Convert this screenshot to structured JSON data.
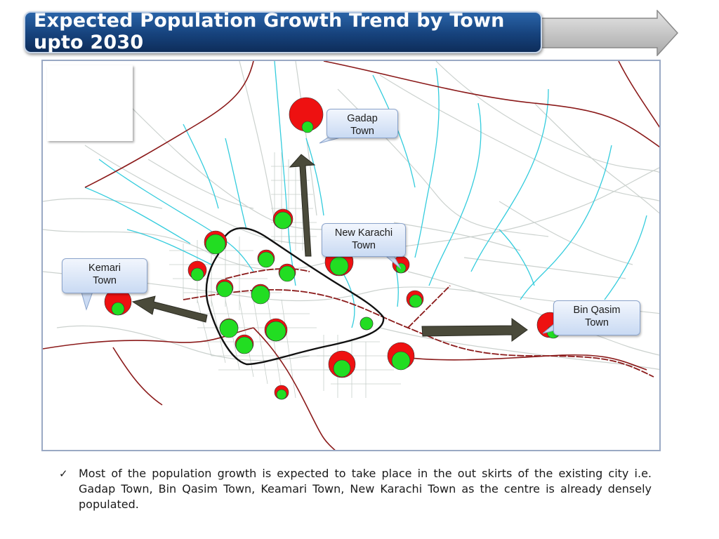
{
  "slide": {
    "title": "Expected Population Growth Trend by Town upto 2030"
  },
  "callouts": {
    "gadap": {
      "line1": "Gadap",
      "line2": "Town"
    },
    "new_karachi": {
      "line1": "New Karachi",
      "line2": "Town"
    },
    "kemari": {
      "line1": "Kemari",
      "line2": "Town"
    },
    "bin_qasim": {
      "line1": "Bin Qasim",
      "line2": "Town"
    }
  },
  "note": {
    "bullet": "✓",
    "text": "Most of the population growth is expected to take place in the out skirts of the existing city i.e. Gadap Town, Bin Qasim Town, Keamari Town, New Karachi Town as the centre is already densely populated."
  },
  "colors": {
    "banner": "#16427c",
    "current_population": "#22dd22",
    "projected_population": "#ee1111",
    "growth_arrow": "#4a4a3a",
    "rivers": "#33ccdd",
    "boundary": "#8b1a1a",
    "central_area_outline": "#111111"
  },
  "icons": {
    "bullet": "check-mark-icon",
    "growth_direction": "arrow-icon"
  }
}
